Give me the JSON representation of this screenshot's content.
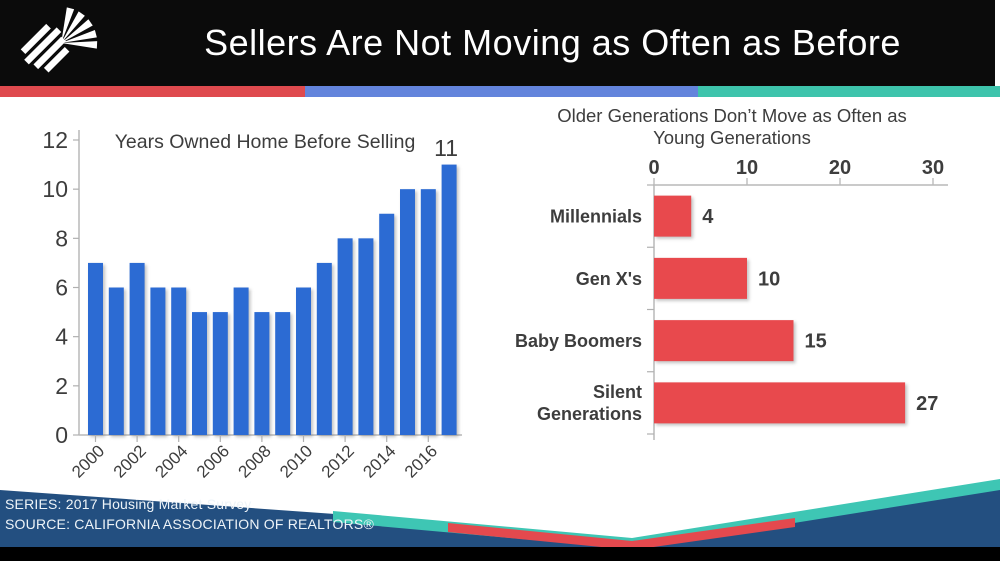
{
  "header": {
    "title": "Sellers Are Not Moving as Often as Before",
    "logo": "california-association-of-realtors-emblem"
  },
  "colors": {
    "header_black": "#0b0b0b",
    "text_dark": "#3d3d3d",
    "bar_blue": "#2c6bd3",
    "bar_red": "#e8494d",
    "stripe_red": "#df4a4e",
    "stripe_blue": "#6384dc",
    "stripe_teal": "#3ec4ac",
    "footer_navy": "#234f80",
    "footer_teal": "#3ec6b4",
    "footer_red": "#e4494e"
  },
  "chart_data": [
    {
      "type": "bar",
      "title": "Years Owned Home Before Selling",
      "categories": [
        "2000",
        "2001",
        "2002",
        "2003",
        "2004",
        "2005",
        "2006",
        "2007",
        "2008",
        "2009",
        "2010",
        "2011",
        "2012",
        "2013",
        "2014",
        "2015",
        "2016",
        "2017"
      ],
      "values": [
        7,
        6,
        7,
        6,
        6,
        5,
        5,
        6,
        5,
        5,
        6,
        7,
        8,
        8,
        9,
        10,
        10,
        11
      ],
      "ylim": [
        0,
        12
      ],
      "yticks": [
        0,
        2,
        4,
        6,
        8,
        10,
        12
      ],
      "xtick_labels": [
        "2000",
        "2002",
        "2004",
        "2006",
        "2008",
        "2010",
        "2012",
        "2014",
        "2016"
      ],
      "annotation": {
        "text": "11",
        "category": "2017"
      },
      "grid": false,
      "legend": false
    },
    {
      "type": "bar-horizontal",
      "title": "Older Generations Don’t Move as Often as Young Generations",
      "title_lines": [
        "Older Generations Don’t Move as Often as",
        "Young Generations"
      ],
      "categories": [
        "Millennials",
        "Gen X's",
        "Baby Boomers",
        "Silent Generations"
      ],
      "category_lines": [
        [
          "Millennials"
        ],
        [
          "Gen X's"
        ],
        [
          "Baby Boomers"
        ],
        [
          "Silent",
          "Generations"
        ]
      ],
      "values": [
        4,
        10,
        15,
        27
      ],
      "value_labels": [
        "4",
        "10",
        "15",
        "27"
      ],
      "xlim": [
        0,
        30
      ],
      "xticks": [
        0,
        10,
        20,
        30
      ],
      "grid": false,
      "legend": false
    }
  ],
  "footer": {
    "series": "SERIES: 2017 Housing Market Survey",
    "source": "SOURCE:  CALIFORNIA ASSOCIATION OF REALTORS®"
  }
}
